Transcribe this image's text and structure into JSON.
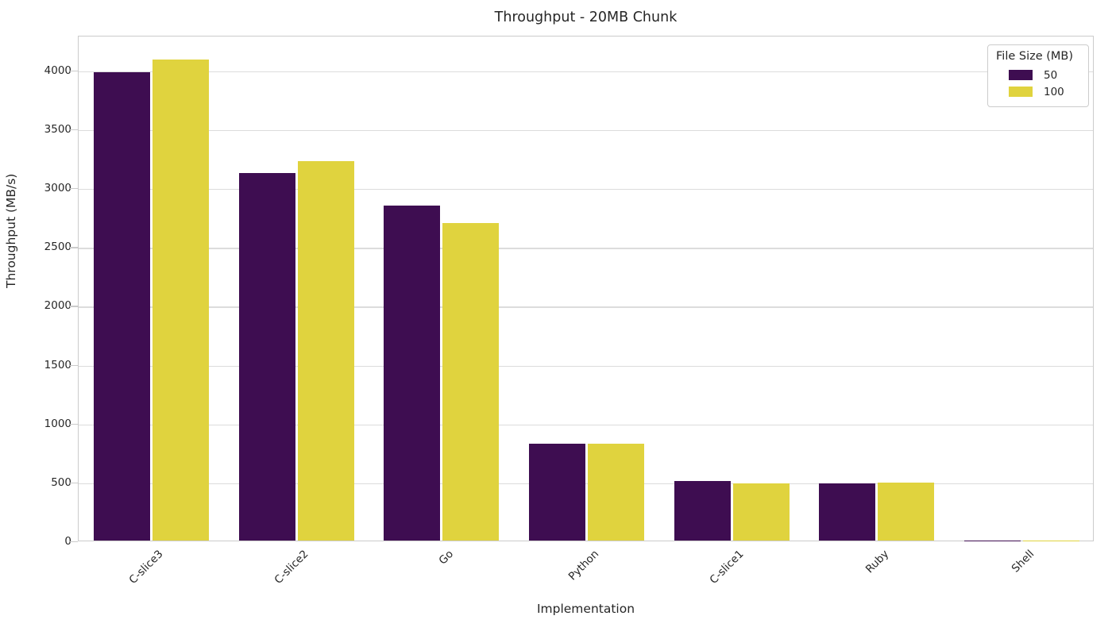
{
  "chart_data": {
    "type": "bar",
    "title": "Throughput - 20MB Chunk",
    "xlabel": "Implementation",
    "ylabel": "Throughput (MB/s)",
    "categories": [
      "C-slice3",
      "C-slice2",
      "Go",
      "Python",
      "C-slice1",
      "Ruby",
      "Shell"
    ],
    "series": [
      {
        "name": "50",
        "color": "#3e0d51",
        "values": [
          3980,
          3120,
          2845,
          822,
          505,
          487,
          2
        ]
      },
      {
        "name": "100",
        "color": "#e0d33e",
        "values": [
          4085,
          3225,
          2695,
          826,
          487,
          490,
          2
        ]
      }
    ],
    "legend": {
      "title": "File Size (MB)",
      "position": "upper right"
    },
    "ylim": [
      0,
      4295
    ],
    "yticks": [
      0,
      500,
      1000,
      1500,
      2000,
      2500,
      3000,
      3500,
      4000
    ],
    "grid": true
  },
  "style": {
    "bar_color_50": "#3e0d51",
    "bar_color_100": "#e0d33e",
    "grid_color": "#dcdcdc",
    "spine_color": "#cbcbcb",
    "text_color": "#262626",
    "background": "#ffffff"
  }
}
